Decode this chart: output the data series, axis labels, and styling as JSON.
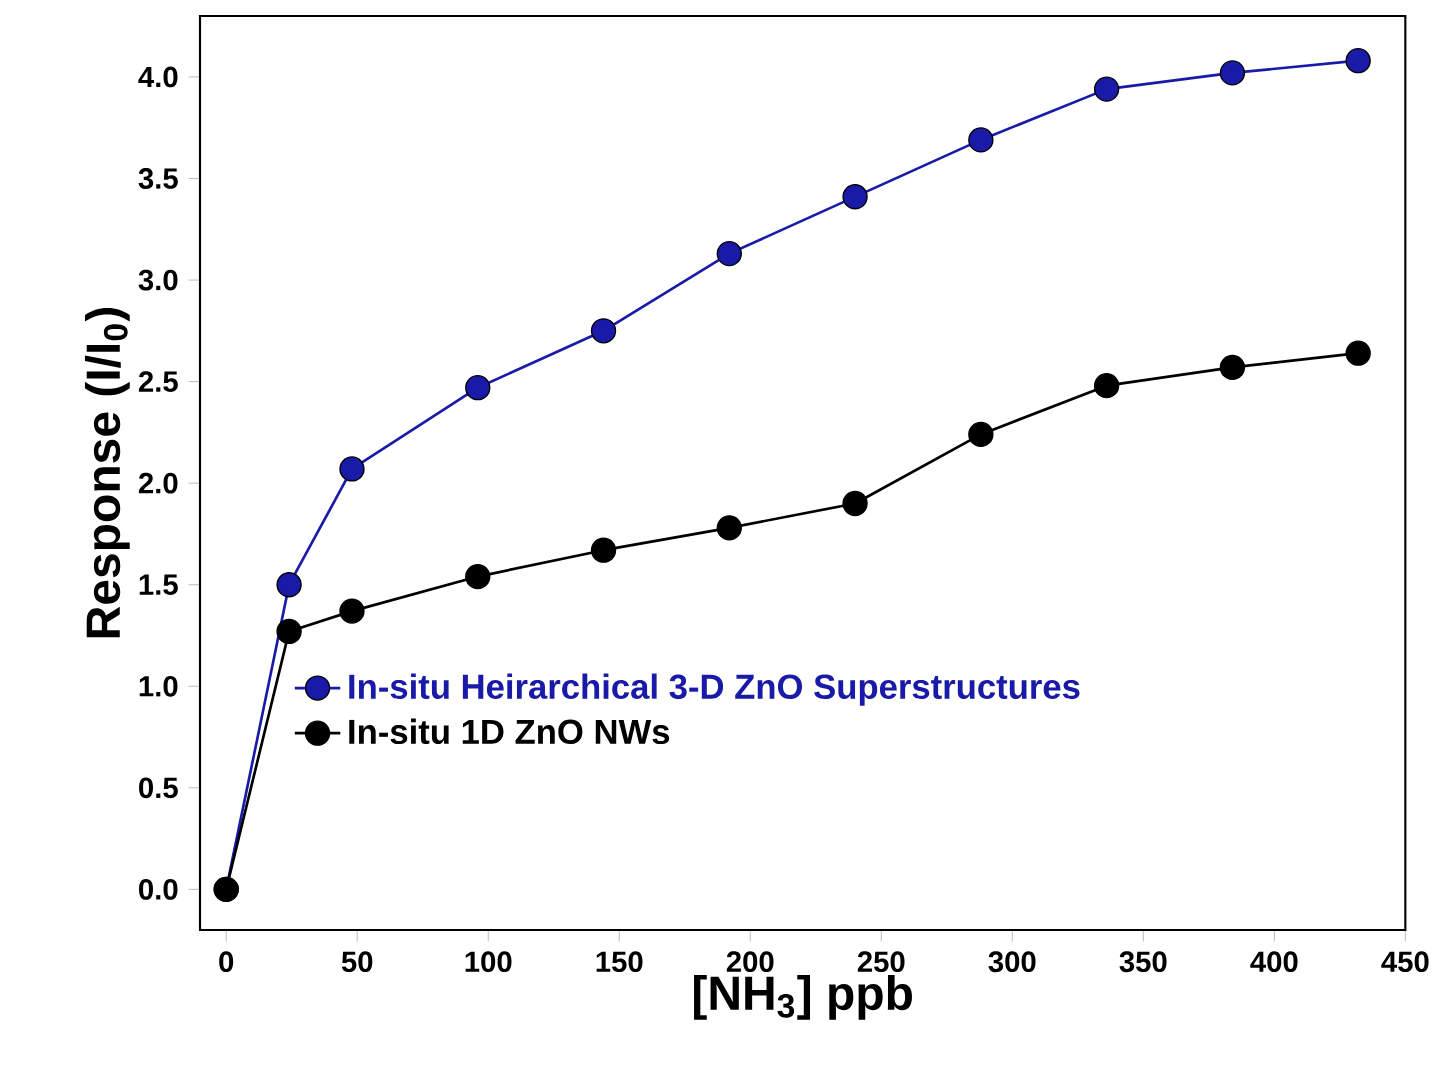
{
  "chart_data": {
    "type": "line",
    "xlabel": "[NH$_{3}$] ppb",
    "ylabel": "Response (I/I$_{0}$)",
    "x": [
      0,
      24,
      48,
      96,
      144,
      192,
      240,
      288,
      336,
      384,
      432
    ],
    "series": [
      {
        "name": "In-situ Heirarchical 3-D ZnO Superstructures",
        "color": "#1a1aa8",
        "values": [
          0,
          1.5,
          2.07,
          2.47,
          2.75,
          3.13,
          3.41,
          3.69,
          3.94,
          4.02,
          4.08
        ]
      },
      {
        "name": "In-situ 1D ZnO NWs",
        "color": "#000000",
        "values": [
          0,
          1.27,
          1.37,
          1.54,
          1.67,
          1.78,
          1.9,
          2.24,
          2.48,
          2.57,
          2.64
        ]
      }
    ],
    "xlim": [
      -10,
      450
    ],
    "ylim": [
      -0.2,
      4.3
    ],
    "xticks": [
      0,
      50,
      100,
      150,
      200,
      250,
      300,
      350,
      400,
      450
    ],
    "yticks": [
      {
        "value": 0,
        "label": "0.0"
      },
      {
        "value": 0.5,
        "label": "0.5"
      },
      {
        "value": 1,
        "label": "1.0"
      },
      {
        "value": 1.5,
        "label": "1.5"
      },
      {
        "value": 2,
        "label": "2.0"
      },
      {
        "value": 2.5,
        "label": "2.5"
      },
      {
        "value": 3,
        "label": "3.0"
      },
      {
        "value": 3.5,
        "label": "3.5"
      },
      {
        "value": 4,
        "label": "4.0"
      }
    ],
    "legend": "left",
    "marker": "circle",
    "line_style": "solid",
    "grid": false
  }
}
